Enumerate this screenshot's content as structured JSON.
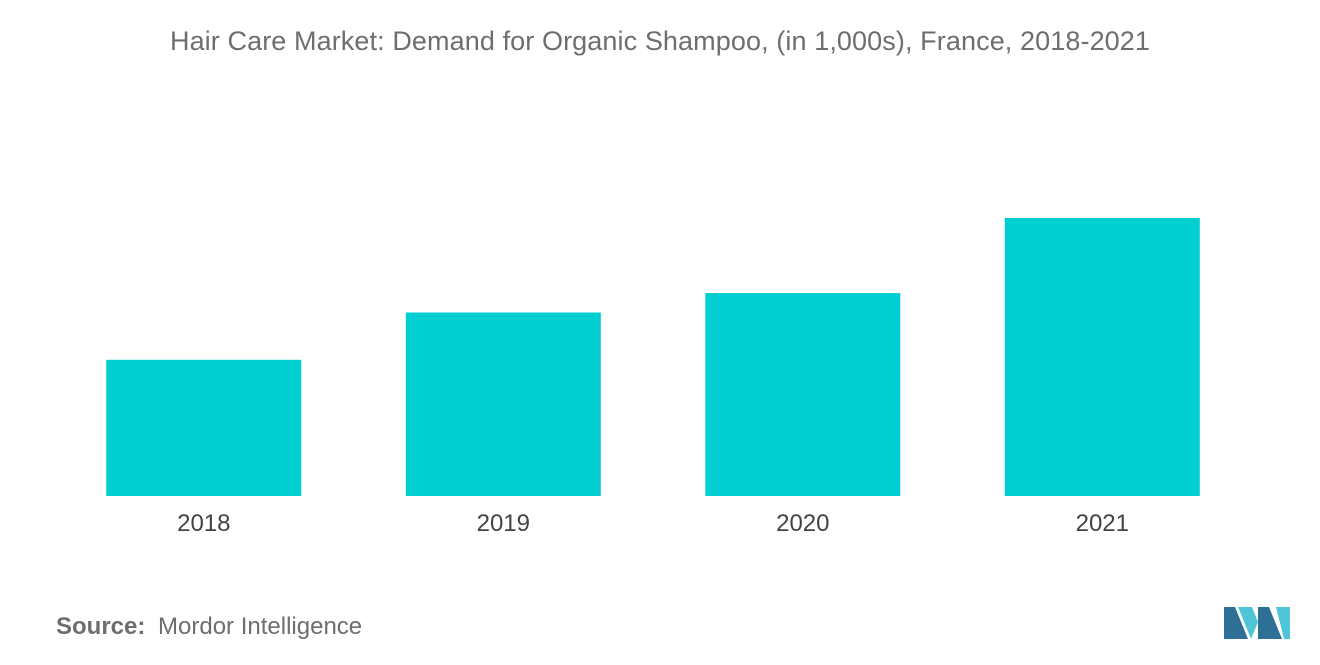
{
  "chart_title": "Hair Care Market: Demand for Organic Shampoo, (in 1,000s), France, 2018-2021",
  "source": {
    "label": "Source:",
    "value": "Mordor Intelligence"
  },
  "colors": {
    "bar": "#00CED1",
    "text": "#6e6e6e",
    "logo_dark": "#2e6f96",
    "logo_light": "#4fc6d8"
  },
  "logo_icon": "mordor-intelligence-logo",
  "chart_data": {
    "type": "bar",
    "title": "Hair Care Market: Demand for Organic Shampoo, (in 1,000s), France, 2018-2021",
    "categories": [
      "2018",
      "2019",
      "2020",
      "2021"
    ],
    "values": [
      49,
      66,
      73,
      100
    ],
    "xlabel": "",
    "ylabel": "",
    "ylim": [
      0,
      100
    ],
    "grid": false,
    "legend": "none"
  }
}
